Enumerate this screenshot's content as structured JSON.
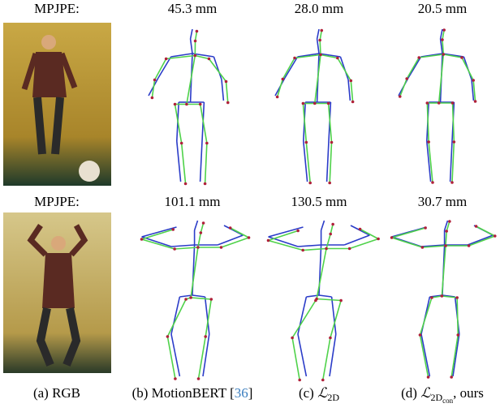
{
  "rows": [
    {
      "label": "MPJPE:",
      "values": [
        "45.3 mm",
        "28.0 mm",
        "20.5 mm"
      ]
    },
    {
      "label": "MPJPE:",
      "values": [
        "101.1 mm",
        "130.5 mm",
        "30.7 mm"
      ]
    }
  ],
  "captions": [
    {
      "text": "(a) RGB"
    },
    {
      "prefix": "(b) MotionBERT [",
      "ref": "36",
      "suffix": "]"
    },
    {
      "prefix": "(c) ",
      "symbol": "ℒ",
      "sub": "2D"
    },
    {
      "prefix": "(d) ",
      "symbol": "ℒ",
      "sub": "2D",
      "subsub": "con",
      "suffix": ", ours"
    }
  ]
}
